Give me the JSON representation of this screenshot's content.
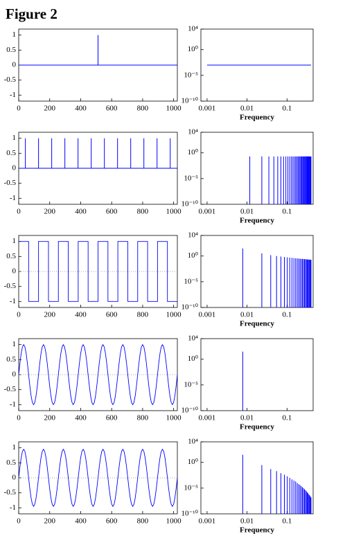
{
  "title": "Figure 2",
  "chart_data": [
    {
      "type": "stem",
      "x": [
        512
      ],
      "values": [
        1
      ],
      "color": "#0000ff",
      "xlim": [
        0,
        1024
      ],
      "xticks": [
        0,
        200,
        400,
        600,
        800,
        1000
      ],
      "ylim": [
        -1.2,
        1.2
      ],
      "yticks": [
        -1,
        -0.5,
        0,
        0.5,
        1
      ]
    },
    {
      "type": "line",
      "x": [
        0.001,
        0.4
      ],
      "values": [
        0.001,
        0.001
      ],
      "color": "#0000ff",
      "log_x": true,
      "log_y": true,
      "xlim": [
        0.0007,
        0.45
      ],
      "xticks": [
        0.001,
        0.01,
        0.1
      ],
      "ylim": [
        1e-10,
        10000
      ],
      "yticks": [
        {
          "value": 1e-10,
          "label": "10⁻¹⁰"
        },
        {
          "value": 1e-05,
          "label": "10⁻⁵"
        },
        {
          "value": 1,
          "label": "10⁰"
        },
        {
          "value": 10000,
          "label": "10⁴"
        }
      ],
      "x_label": "Frequency"
    },
    {
      "type": "stem",
      "x": [
        43,
        128,
        213,
        298,
        383,
        468,
        553,
        638,
        723,
        808,
        893,
        978
      ],
      "values": [
        1,
        1,
        1,
        1,
        1,
        1,
        1,
        1,
        1,
        1,
        1,
        1
      ],
      "color": "#0000ff",
      "xlim": [
        0,
        1024
      ],
      "xticks": [
        0,
        200,
        400,
        600,
        800,
        1000
      ],
      "ylim": [
        -1.2,
        1.2
      ],
      "yticks": [
        -1,
        -0.5,
        0,
        0.5,
        1
      ]
    },
    {
      "type": "stem",
      "x": [
        0.0117,
        0.0234,
        0.0351,
        0.0468,
        0.0585,
        0.0702,
        0.0819,
        0.0936,
        0.1053,
        0.117,
        0.1287,
        0.1404,
        0.1521,
        0.1638,
        0.1755,
        0.1872,
        0.1989,
        0.2106,
        0.2223,
        0.234,
        0.2457,
        0.2574,
        0.2691,
        0.2808,
        0.2925,
        0.3042,
        0.3159,
        0.3276,
        0.3393,
        0.351,
        0.3627,
        0.3744,
        0.3861,
        0.3978
      ],
      "values": [
        0.2,
        0.2,
        0.2,
        0.2,
        0.2,
        0.2,
        0.2,
        0.2,
        0.2,
        0.2,
        0.2,
        0.2,
        0.2,
        0.2,
        0.2,
        0.2,
        0.2,
        0.2,
        0.2,
        0.2,
        0.2,
        0.2,
        0.2,
        0.2,
        0.2,
        0.2,
        0.2,
        0.2,
        0.2,
        0.2,
        0.2,
        0.2,
        0.2,
        0.2
      ],
      "color": "#0000ff",
      "log_x": true,
      "log_y": true,
      "xlim": [
        0.0007,
        0.45
      ],
      "xticks": [
        0.001,
        0.01,
        0.1
      ],
      "ylim": [
        1e-10,
        10000
      ],
      "yticks": [
        {
          "value": 1e-10,
          "label": "10⁻¹⁰"
        },
        {
          "value": 1e-05,
          "label": "10⁻⁵"
        },
        {
          "value": 1,
          "label": "10⁰"
        },
        {
          "value": 10000,
          "label": "10⁴"
        }
      ],
      "x_label": "Frequency"
    },
    {
      "type": "line",
      "x": [
        0,
        64,
        64,
        128,
        128,
        192,
        192,
        256,
        256,
        320,
        320,
        384,
        384,
        448,
        448,
        512,
        512,
        576,
        576,
        640,
        640,
        704,
        704,
        768,
        768,
        832,
        832,
        896,
        896,
        960,
        960,
        1024
      ],
      "values": [
        1,
        1,
        -1,
        -1,
        1,
        1,
        -1,
        -1,
        1,
        1,
        -1,
        -1,
        1,
        1,
        -1,
        -1,
        1,
        1,
        -1,
        -1,
        1,
        1,
        -1,
        -1,
        1,
        1,
        -1,
        -1,
        1,
        1,
        -1,
        -1
      ],
      "color": "#0000ff",
      "xlim": [
        0,
        1024
      ],
      "xticks": [
        0,
        200,
        400,
        600,
        800,
        1000
      ],
      "ylim": [
        -1.2,
        1.2
      ],
      "yticks": [
        -1,
        -0.5,
        0,
        0.5,
        1
      ]
    },
    {
      "type": "stem",
      "x": [
        0.0078,
        0.0234,
        0.0391,
        0.0547,
        0.0703,
        0.0859,
        0.1016,
        0.1172,
        0.1328,
        0.1484,
        0.1641,
        0.1797,
        0.1953,
        0.2109,
        0.2266,
        0.2422,
        0.2578,
        0.2734,
        0.2891,
        0.3047,
        0.3203,
        0.3359,
        0.3516,
        0.3672,
        0.3828,
        0.3984
      ],
      "values": [
        30,
        3.3,
        1.5,
        1,
        0.8,
        0.65,
        0.55,
        0.5,
        0.45,
        0.4,
        0.37,
        0.34,
        0.32,
        0.3,
        0.28,
        0.27,
        0.26,
        0.25,
        0.24,
        0.23,
        0.22,
        0.21,
        0.2,
        0.2,
        0.19,
        0.19
      ],
      "color": "#0000ff",
      "log_x": true,
      "log_y": true,
      "xlim": [
        0.0007,
        0.45
      ],
      "xticks": [
        0.001,
        0.01,
        0.1
      ],
      "ylim": [
        1e-10,
        10000
      ],
      "yticks": [
        {
          "value": 1e-10,
          "label": "10⁻¹⁰"
        },
        {
          "value": 1e-05,
          "label": "10⁻⁵"
        },
        {
          "value": 1,
          "label": "10⁰"
        },
        {
          "value": 10000,
          "label": "10⁴"
        }
      ],
      "x_label": "Frequency"
    },
    {
      "type": "line",
      "x": [
        0,
        8,
        16,
        24,
        32,
        40,
        48,
        56,
        64,
        72,
        80,
        88,
        96,
        104,
        112,
        120,
        128,
        136,
        144,
        152,
        160,
        168,
        176,
        184,
        192,
        200,
        208,
        216,
        224,
        232,
        240,
        248,
        256,
        264,
        272,
        280,
        288,
        296,
        304,
        312,
        320,
        328,
        336,
        344,
        352,
        360,
        368,
        376,
        384,
        392,
        400,
        408,
        416,
        424,
        432,
        440,
        448,
        456,
        464,
        472,
        480,
        488,
        496,
        504,
        512,
        520,
        528,
        536,
        544,
        552,
        560,
        568,
        576,
        584,
        592,
        600,
        608,
        616,
        624,
        632,
        640,
        648,
        656,
        664,
        672,
        680,
        688,
        696,
        704,
        712,
        720,
        728,
        736,
        744,
        752,
        760,
        768,
        776,
        784,
        792,
        800,
        808,
        816,
        824,
        832,
        840,
        848,
        856,
        864,
        872,
        880,
        888,
        896,
        904,
        912,
        920,
        928,
        936,
        944,
        952,
        960,
        968,
        976,
        984,
        992,
        1000,
        1008,
        1016,
        1024
      ],
      "values": [
        0,
        0.383,
        0.707,
        0.924,
        1,
        0.924,
        0.707,
        0.383,
        0,
        -0.383,
        -0.707,
        -0.924,
        -1,
        -0.924,
        -0.707,
        -0.383,
        0,
        0.383,
        0.707,
        0.924,
        1,
        0.924,
        0.707,
        0.383,
        0,
        -0.383,
        -0.707,
        -0.924,
        -1,
        -0.924,
        -0.707,
        -0.383,
        0,
        0.383,
        0.707,
        0.924,
        1,
        0.924,
        0.707,
        0.383,
        0,
        -0.383,
        -0.707,
        -0.924,
        -1,
        -0.924,
        -0.707,
        -0.383,
        0,
        0.383,
        0.707,
        0.924,
        1,
        0.924,
        0.707,
        0.383,
        0,
        -0.383,
        -0.707,
        -0.924,
        -1,
        -0.924,
        -0.707,
        -0.383,
        0,
        0.383,
        0.707,
        0.924,
        1,
        0.924,
        0.707,
        0.383,
        0,
        -0.383,
        -0.707,
        -0.924,
        -1,
        -0.924,
        -0.707,
        -0.383,
        0,
        0.383,
        0.707,
        0.924,
        1,
        0.924,
        0.707,
        0.383,
        0,
        -0.383,
        -0.707,
        -0.924,
        -1,
        -0.924,
        -0.707,
        -0.383,
        0,
        0.383,
        0.707,
        0.924,
        1,
        0.924,
        0.707,
        0.383,
        0,
        -0.383,
        -0.707,
        -0.924,
        -1,
        -0.924,
        -0.707,
        -0.383,
        0,
        0.383,
        0.707,
        0.924,
        1,
        0.924,
        0.707,
        0.383,
        0,
        -0.383,
        -0.707,
        -0.924,
        -1,
        -0.924,
        -0.707,
        -0.383,
        0
      ],
      "color": "#0000ff",
      "xlim": [
        0,
        1024
      ],
      "xticks": [
        0,
        200,
        400,
        600,
        800,
        1000
      ],
      "ylim": [
        -1.2,
        1.2
      ],
      "yticks": [
        -1,
        -0.5,
        0,
        0.5,
        1
      ]
    },
    {
      "type": "stem",
      "x": [
        0.0078
      ],
      "values": [
        30
      ],
      "color": "#0000ff",
      "log_x": true,
      "log_y": true,
      "xlim": [
        0.0007,
        0.45
      ],
      "xticks": [
        0.001,
        0.01,
        0.1
      ],
      "ylim": [
        1e-10,
        10000
      ],
      "yticks": [
        {
          "value": 1e-10,
          "label": "10⁻¹⁰"
        },
        {
          "value": 1e-05,
          "label": "10⁻⁵"
        },
        {
          "value": 1,
          "label": "10⁰"
        },
        {
          "value": 10000,
          "label": "10⁴"
        }
      ],
      "x_label": "Frequency"
    },
    {
      "type": "line",
      "x": [
        0,
        8,
        16,
        24,
        32,
        40,
        48,
        56,
        64,
        72,
        80,
        88,
        96,
        104,
        112,
        120,
        128,
        136,
        144,
        152,
        160,
        168,
        176,
        184,
        192,
        200,
        208,
        216,
        224,
        232,
        240,
        248,
        256,
        264,
        272,
        280,
        288,
        296,
        304,
        312,
        320,
        328,
        336,
        344,
        352,
        360,
        368,
        376,
        384,
        392,
        400,
        408,
        416,
        424,
        432,
        440,
        448,
        456,
        464,
        472,
        480,
        488,
        496,
        504,
        512,
        520,
        528,
        536,
        544,
        552,
        560,
        568,
        576,
        584,
        592,
        600,
        608,
        616,
        624,
        632,
        640,
        648,
        656,
        664,
        672,
        680,
        688,
        696,
        704,
        712,
        720,
        728,
        736,
        744,
        752,
        760,
        768,
        776,
        784,
        792,
        800,
        808,
        816,
        824,
        832,
        840,
        848,
        856,
        864,
        872,
        880,
        888,
        896,
        904,
        912,
        920,
        928,
        936,
        944,
        952,
        960,
        968,
        976,
        984,
        992,
        1000,
        1008,
        1016,
        1024
      ],
      "values": [
        0,
        0.364,
        0.672,
        0.878,
        0.95,
        0.878,
        0.672,
        0.364,
        0,
        -0.364,
        -0.672,
        -0.878,
        -0.95,
        -0.878,
        -0.672,
        -0.364,
        0,
        0.364,
        0.672,
        0.878,
        0.95,
        0.878,
        0.672,
        0.364,
        0,
        -0.364,
        -0.672,
        -0.878,
        -0.95,
        -0.878,
        -0.672,
        -0.364,
        0,
        0.364,
        0.672,
        0.878,
        0.95,
        0.878,
        0.672,
        0.364,
        0,
        -0.364,
        -0.672,
        -0.878,
        -0.95,
        -0.878,
        -0.672,
        -0.364,
        0,
        0.364,
        0.672,
        0.878,
        0.95,
        0.878,
        0.672,
        0.364,
        0,
        -0.364,
        -0.672,
        -0.878,
        -0.95,
        -0.878,
        -0.672,
        -0.364,
        0,
        0.364,
        0.672,
        0.878,
        0.95,
        0.878,
        0.672,
        0.364,
        0,
        -0.364,
        -0.672,
        -0.878,
        -0.95,
        -0.878,
        -0.672,
        -0.364,
        0,
        0.364,
        0.672,
        0.878,
        0.95,
        0.878,
        0.672,
        0.364,
        0,
        -0.364,
        -0.672,
        -0.878,
        -0.95,
        -0.878,
        -0.672,
        -0.364,
        0,
        0.364,
        0.672,
        0.878,
        0.95,
        0.878,
        0.672,
        0.364,
        0,
        -0.364,
        -0.672,
        -0.878,
        -0.95,
        -0.878,
        -0.672,
        -0.364,
        0,
        0.364,
        0.672,
        0.878,
        0.95,
        0.878,
        0.672,
        0.364,
        0,
        -0.364,
        -0.672,
        -0.878,
        -0.95,
        -0.878,
        -0.672,
        -0.364,
        0
      ],
      "color": "#0000ff",
      "xlim": [
        0,
        1024
      ],
      "xticks": [
        0,
        200,
        400,
        600,
        800,
        1000
      ],
      "ylim": [
        -1.2,
        1.2
      ],
      "yticks": [
        -1,
        -0.5,
        0,
        0.5,
        1
      ]
    },
    {
      "type": "stem",
      "x": [
        0.0078,
        0.0234,
        0.0391,
        0.0547,
        0.0703,
        0.0859,
        0.1016,
        0.1172,
        0.1328,
        0.1484,
        0.1641,
        0.1797,
        0.1953,
        0.2109,
        0.2266,
        0.2422,
        0.2578,
        0.2734,
        0.2891,
        0.3047,
        0.3203,
        0.3359,
        0.3516,
        0.3672,
        0.3828,
        0.3984
      ],
      "values": [
        30,
        0.3,
        0.05,
        0.02,
        0.008,
        0.004,
        0.002,
        0.001,
        0.0005,
        0.0003,
        0.0002,
        0.0001,
        6e-05,
        4e-05,
        2.5e-05,
        1.5e-05,
        1e-05,
        6e-06,
        4e-06,
        2.5e-06,
        1.5e-06,
        1e-06,
        6e-07,
        4e-07,
        2.5e-07,
        1.5e-07
      ],
      "color": "#0000ff",
      "log_x": true,
      "log_y": true,
      "xlim": [
        0.0007,
        0.45
      ],
      "xticks": [
        0.001,
        0.01,
        0.1
      ],
      "ylim": [
        1e-10,
        10000
      ],
      "yticks": [
        {
          "value": 1e-10,
          "label": "10⁻¹⁰"
        },
        {
          "value": 1e-05,
          "label": "10⁻⁵"
        },
        {
          "value": 1,
          "label": "10⁰"
        },
        {
          "value": 10000,
          "label": "10⁴"
        }
      ],
      "x_label": "Frequency"
    }
  ]
}
